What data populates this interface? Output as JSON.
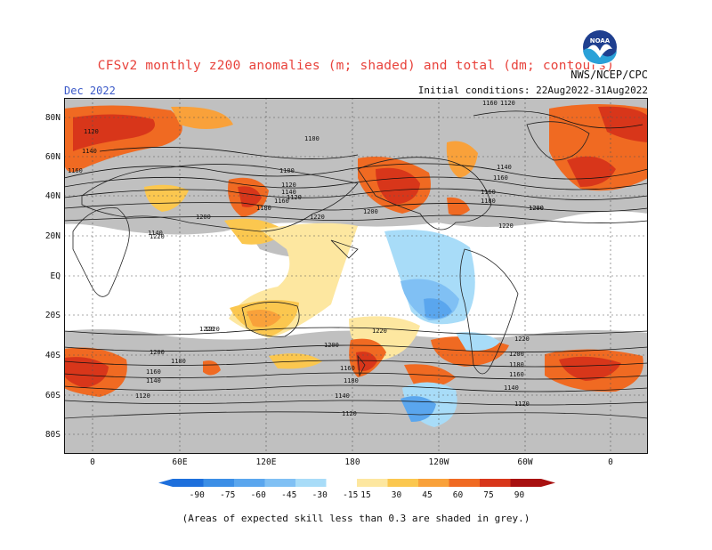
{
  "title": "CFSv2 monthly z200 anomalies (m; shaded) and total (dm; contours)",
  "credit": "NWS/NCEP/CPC",
  "month": "Dec 2022",
  "initial_conditions": "Initial conditions: 22Aug2022-31Aug2022",
  "logo_text": "NOAA",
  "footnote": "(Areas of expected skill less than 0.3 are shaded in grey.)",
  "lat_labels": [
    "80N",
    "60N",
    "40N",
    "20N",
    "EQ",
    "20S",
    "40S",
    "60S",
    "80S"
  ],
  "lon_labels": [
    "0",
    "60E",
    "120E",
    "180",
    "120W",
    "60W",
    "0"
  ],
  "colorbar": {
    "ticks": [
      "-90",
      "-75",
      "-60",
      "-45",
      "-30",
      "-15",
      "15",
      "30",
      "45",
      "60",
      "75",
      "90"
    ],
    "colors": [
      "#1d6fdc",
      "#3b8ee6",
      "#5aa6ee",
      "#80c0f4",
      "#a8dcf8",
      "#ffffff",
      "#fde7a0",
      "#fbc74f",
      "#f9a13a",
      "#f06a22",
      "#d8361a",
      "#a81010"
    ]
  },
  "contour_labels": [
    "1120",
    "1140",
    "1160",
    "1100",
    "1120",
    "1140",
    "1160",
    "1180",
    "1200",
    "1220",
    "1220",
    "1200",
    "1160",
    "1120",
    "1140",
    "1160",
    "1180",
    "1200",
    "1220",
    "1220",
    "1200",
    "1180",
    "1160",
    "1140",
    "1120",
    "1220",
    "1200",
    "1180",
    "1160",
    "1140",
    "1120",
    "1100",
    "1120",
    "1140",
    "1160",
    "1200",
    "1220",
    "1220",
    "1200",
    "1180",
    "1160",
    "1140",
    "1120"
  ],
  "colors": {
    "grey_mask": "#c0c0c0",
    "title": "#e8423b",
    "month": "#3b59c8"
  }
}
